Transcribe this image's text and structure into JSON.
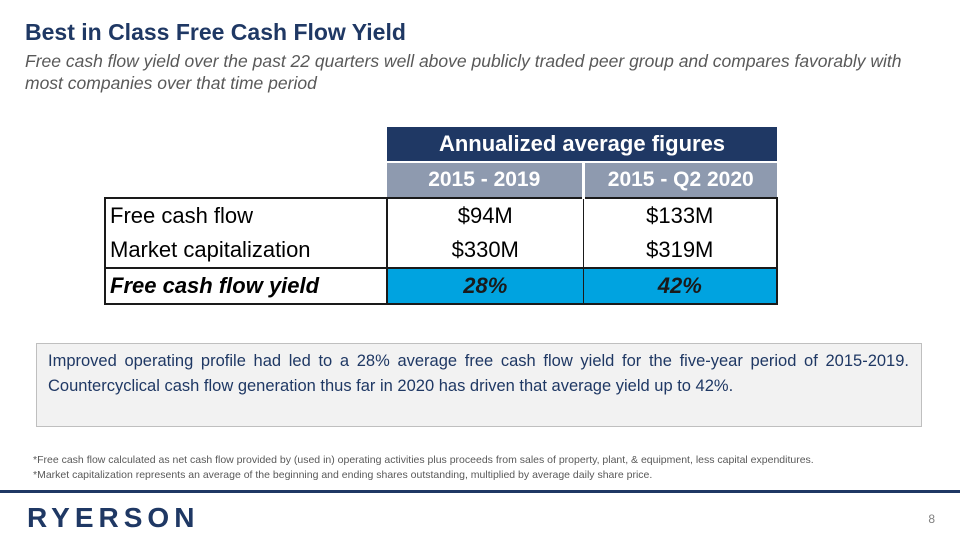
{
  "header": {
    "title": "Best in Class Free Cash Flow Yield",
    "subtitle": "Free cash flow yield over the past 22 quarters well above publicly traded peer group and compares favorably with most companies over that time period"
  },
  "table": {
    "group_header": "Annualized average figures",
    "columns": [
      "2015 - 2019",
      "2015 - Q2 2020"
    ],
    "rows": [
      {
        "label": "Free cash flow",
        "values": [
          "$94M",
          "$133M"
        ]
      },
      {
        "label": "Market capitalization",
        "values": [
          "$330M",
          "$319M"
        ]
      },
      {
        "label": "Free cash flow yield",
        "values": [
          "28%",
          "42%"
        ]
      }
    ]
  },
  "callout": {
    "text": "Improved operating profile had led to a 28% average free cash flow yield for the five-year period of 2015-2019. Countercyclical cash flow generation thus far in 2020 has driven that average yield up to 42%."
  },
  "footnotes": [
    "*Free cash flow calculated as net cash flow provided by (used in) operating activities plus proceeds from sales of property, plant, & equipment, less capital expenditures.",
    "*Market capitalization represents an average of the beginning and ending shares outstanding, multiplied by average daily share price."
  ],
  "footer": {
    "logo_text": "RYERSON",
    "page_number": "8"
  },
  "colors": {
    "navy": "#1f3864",
    "slate": "#8e9aaf",
    "highlight_blue": "#00a3e0",
    "callout_bg": "#f2f2f2"
  }
}
